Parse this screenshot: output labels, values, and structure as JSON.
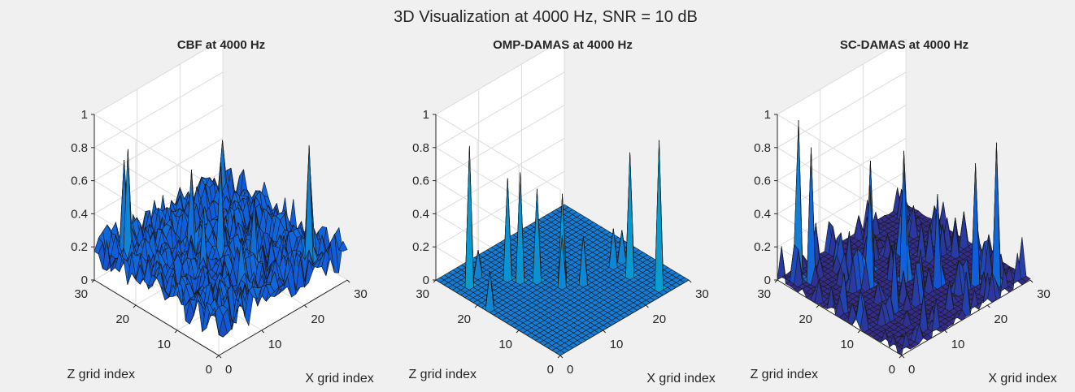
{
  "figure": {
    "suptitle": "3D Visualization at 4000 Hz, SNR = 10 dB",
    "background": "#f0f0f0",
    "pane_color": "#ffffff",
    "grid_color": "#dcdcdc",
    "colormap": "parula"
  },
  "chart_data": [
    {
      "type": "surface",
      "title": "CBF at 4000 Hz",
      "xlabel": "X grid index",
      "ylabel": "Z grid index",
      "zlabel": "",
      "xlim": [
        0,
        30
      ],
      "ylim": [
        0,
        30
      ],
      "zlim": [
        0,
        1
      ],
      "xticks": [
        {
          "v": 0,
          "label": "0"
        },
        {
          "v": 10,
          "label": "10"
        },
        {
          "v": 20,
          "label": "20"
        },
        {
          "v": 30,
          "label": "30"
        }
      ],
      "yticks": [
        {
          "v": 0,
          "label": "0"
        },
        {
          "v": 10,
          "label": "10"
        },
        {
          "v": 20,
          "label": "20"
        },
        {
          "v": 30,
          "label": "30"
        }
      ],
      "zticks": [
        {
          "v": 0,
          "label": "0"
        },
        {
          "v": 0.2,
          "label": "0.2"
        },
        {
          "v": 0.4,
          "label": "0.4"
        },
        {
          "v": 0.6,
          "label": "0.6"
        },
        {
          "v": 0.8,
          "label": "0.8"
        },
        {
          "v": 1,
          "label": "1"
        }
      ],
      "grid": true,
      "view": {
        "azimuth": -37.5,
        "elevation": 30
      },
      "surface": {
        "grid_n": 31,
        "background": {
          "mode": "noise",
          "base": 0.18,
          "amplitude": 0.22,
          "seed": 7
        },
        "peaks": [
          {
            "x": 3,
            "z": 25,
            "value": 0.82
          },
          {
            "x": 5,
            "z": 28,
            "value": 0.68
          },
          {
            "x": 24,
            "z": 3,
            "value": 0.86
          },
          {
            "x": 26,
            "z": 5,
            "value": 0.72
          },
          {
            "x": 15,
            "z": 15,
            "value": 0.71
          },
          {
            "x": 13,
            "z": 20,
            "value": 0.62
          },
          {
            "x": 17,
            "z": 9,
            "value": 0.55
          },
          {
            "x": 10,
            "z": 14,
            "value": 0.52
          },
          {
            "x": 27,
            "z": 27,
            "value": 0.48
          },
          {
            "x": 11,
            "z": 6,
            "value": 0.45
          }
        ]
      }
    },
    {
      "type": "surface",
      "title": "OMP-DAMAS at 4000 Hz",
      "xlabel": "X grid index",
      "ylabel": "Z grid index",
      "zlabel": "",
      "xlim": [
        0,
        30
      ],
      "ylim": [
        0,
        30
      ],
      "zlim": [
        0,
        1
      ],
      "xticks": [
        {
          "v": 0,
          "label": "0"
        },
        {
          "v": 10,
          "label": "10"
        },
        {
          "v": 20,
          "label": "20"
        },
        {
          "v": 30,
          "label": "30"
        }
      ],
      "yticks": [
        {
          "v": 0,
          "label": "0"
        },
        {
          "v": 10,
          "label": "10"
        },
        {
          "v": 20,
          "label": "20"
        },
        {
          "v": 30,
          "label": "30"
        }
      ],
      "zticks": [
        {
          "v": 0,
          "label": "0"
        },
        {
          "v": 0.2,
          "label": "0.2"
        },
        {
          "v": 0.4,
          "label": "0.4"
        },
        {
          "v": 0.6,
          "label": "0.6"
        },
        {
          "v": 0.8,
          "label": "0.8"
        },
        {
          "v": 1,
          "label": "1"
        }
      ],
      "grid": true,
      "view": {
        "azimuth": -37.5,
        "elevation": 30
      },
      "surface": {
        "grid_n": 31,
        "background": {
          "mode": "flat",
          "base": 0,
          "amplitude": 0,
          "seed": 1
        },
        "peaks": [
          {
            "x": 3,
            "z": 25,
            "value": 0.84
          },
          {
            "x": 25,
            "z": 2,
            "value": 0.89
          },
          {
            "x": 24,
            "z": 8,
            "value": 0.74
          },
          {
            "x": 10,
            "z": 20,
            "value": 0.65
          },
          {
            "x": 9,
            "z": 22,
            "value": 0.6
          },
          {
            "x": 12,
            "z": 18,
            "value": 0.55
          },
          {
            "x": 15,
            "z": 15,
            "value": 0.52
          },
          {
            "x": 1,
            "z": 18,
            "value": 0.22
          },
          {
            "x": 14,
            "z": 14,
            "value": 0.3
          },
          {
            "x": 17,
            "z": 12,
            "value": 0.28
          },
          {
            "x": 24,
            "z": 12,
            "value": 0.22
          },
          {
            "x": 26,
            "z": 12,
            "value": 0.18
          },
          {
            "x": 6,
            "z": 26,
            "value": 0.15
          }
        ]
      }
    },
    {
      "type": "surface",
      "title": "SC-DAMAS at 4000 Hz",
      "xlabel": "X grid index",
      "ylabel": "Z grid index",
      "zlabel": "",
      "xlim": [
        0,
        30
      ],
      "ylim": [
        0,
        30
      ],
      "zlim": [
        0,
        1
      ],
      "xticks": [
        {
          "v": 0,
          "label": "0"
        },
        {
          "v": 10,
          "label": "10"
        },
        {
          "v": 20,
          "label": "20"
        },
        {
          "v": 30,
          "label": "30"
        }
      ],
      "yticks": [
        {
          "v": 0,
          "label": "0"
        },
        {
          "v": 10,
          "label": "10"
        },
        {
          "v": 20,
          "label": "20"
        },
        {
          "v": 30,
          "label": "30"
        }
      ],
      "zticks": [
        {
          "v": 0,
          "label": "0"
        },
        {
          "v": 0.2,
          "label": "0.2"
        },
        {
          "v": 0.4,
          "label": "0.4"
        },
        {
          "v": 0.6,
          "label": "0.6"
        },
        {
          "v": 0.8,
          "label": "0.8"
        },
        {
          "v": 1,
          "label": "1"
        }
      ],
      "grid": true,
      "view": {
        "azimuth": -37.5,
        "elevation": 30
      },
      "surface": {
        "grid_n": 31,
        "background": {
          "mode": "sparse",
          "base": 0.01,
          "amplitude": 0.06,
          "seed": 13
        },
        "peaks": [
          {
            "x": 3,
            "z": 28,
            "value": 0.95
          },
          {
            "x": 4,
            "z": 26,
            "value": 0.8
          },
          {
            "x": 25,
            "z": 3,
            "value": 0.86
          },
          {
            "x": 23,
            "z": 6,
            "value": 0.72
          },
          {
            "x": 15,
            "z": 15,
            "value": 0.78
          },
          {
            "x": 13,
            "z": 21,
            "value": 0.66
          },
          {
            "x": 10,
            "z": 18,
            "value": 0.6
          },
          {
            "x": 18,
            "z": 10,
            "value": 0.55
          },
          {
            "x": 20,
            "z": 20,
            "value": 0.45
          },
          {
            "x": 8,
            "z": 10,
            "value": 0.42
          }
        ]
      }
    }
  ]
}
